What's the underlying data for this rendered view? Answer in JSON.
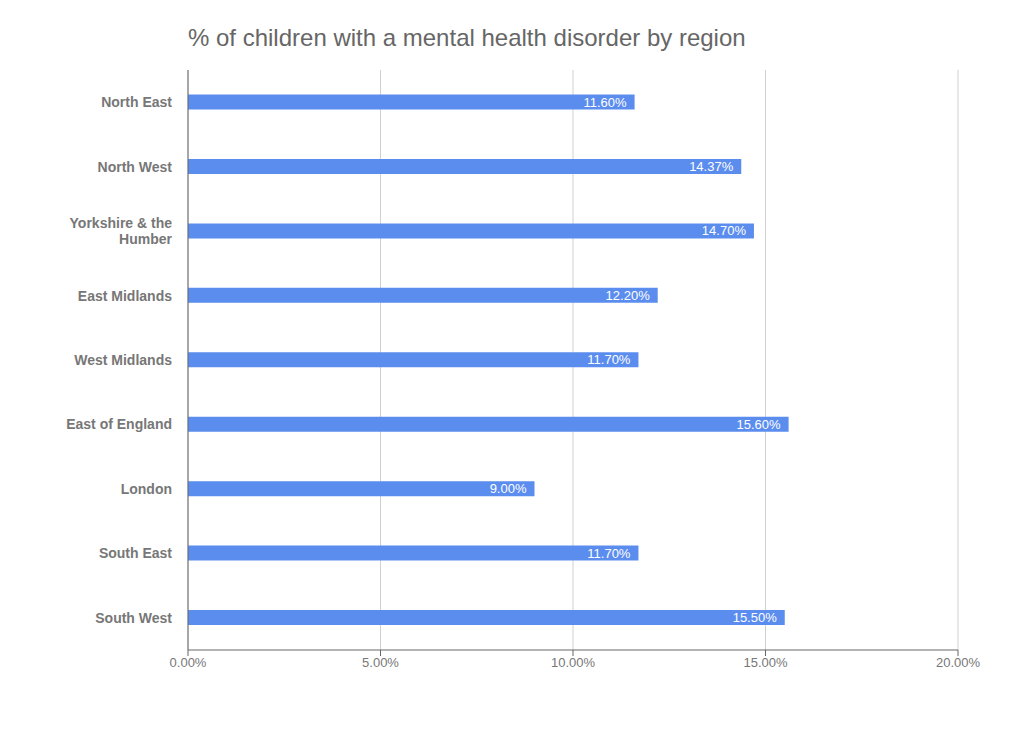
{
  "chart_data": {
    "type": "bar",
    "orientation": "horizontal",
    "title": "% of children with a mental health disorder by region",
    "categories": [
      "South West",
      "South East",
      "London",
      "East of England",
      "West Midlands",
      "East Midlands",
      "Yorkshire & the\nHumber",
      "North West",
      "North East"
    ],
    "values": [
      15.5,
      11.7,
      9.0,
      15.6,
      11.7,
      12.2,
      14.7,
      14.37,
      11.6
    ],
    "value_labels": [
      "15.50%",
      "11.70%",
      "9.00%",
      "15.60%",
      "11.70%",
      "12.20%",
      "14.70%",
      "14.37%",
      "11.60%"
    ],
    "data_labels": true,
    "color": "#5B8DEF",
    "xlim": [
      0,
      20
    ],
    "xticks": [
      {
        "value": 0,
        "label": "0.00%"
      },
      {
        "value": 5,
        "label": "5.00%"
      },
      {
        "value": 10,
        "label": "10.00%"
      },
      {
        "value": 15,
        "label": "15.00%"
      },
      {
        "value": 20,
        "label": "20.00%"
      }
    ],
    "grid": true
  }
}
